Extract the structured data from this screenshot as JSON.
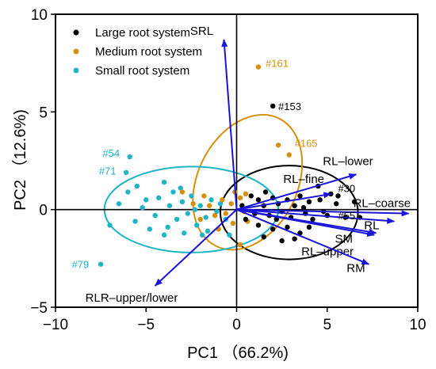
{
  "chart_data": {
    "type": "scatter",
    "title": "",
    "xlabel": "PC1 （66.2%)",
    "ylabel": "PC2 （12.6%)",
    "xlim": [
      -10,
      10
    ],
    "ylim": [
      -5,
      10
    ],
    "xticks": [
      -10,
      -5,
      0,
      5,
      10
    ],
    "yticks": [
      -5,
      0,
      5,
      10
    ],
    "legend_position": "top-left",
    "colors": {
      "large": "#000000",
      "medium": "#d4900c",
      "small": "#1fb5c6",
      "loading": "#1a14d8",
      "axis": "#000000"
    },
    "series": [
      {
        "key": "large",
        "name": "Large root system",
        "points": [
          [
            0.8,
            0.7
          ],
          [
            1.2,
            0.5
          ],
          [
            1.5,
            0.2
          ],
          [
            2.0,
            0.6
          ],
          [
            2.3,
            0.3
          ],
          [
            2.8,
            0.5
          ],
          [
            3.2,
            0.2
          ],
          [
            3.5,
            0.7
          ],
          [
            4.0,
            0.4
          ],
          [
            4.6,
            0.5
          ],
          [
            5.2,
            0.8
          ],
          [
            5.5,
            0.3
          ],
          [
            6.5,
            0.4
          ],
          [
            1.0,
            -0.2
          ],
          [
            1.8,
            -0.3
          ],
          [
            2.5,
            -0.1
          ],
          [
            3.0,
            -0.4
          ],
          [
            3.8,
            -0.2
          ],
          [
            4.2,
            -0.5
          ],
          [
            4.8,
            -0.1
          ],
          [
            0.5,
            -0.5
          ],
          [
            1.2,
            -0.8
          ],
          [
            2.0,
            -1.0
          ],
          [
            2.8,
            -0.9
          ],
          [
            3.5,
            -1.2
          ],
          [
            4.0,
            -0.9
          ],
          [
            1.5,
            -1.4
          ],
          [
            2.5,
            -1.6
          ],
          [
            3.2,
            -1.5
          ],
          [
            0.3,
            0.2
          ],
          [
            1.6,
            0.9
          ],
          [
            4.5,
            1.2
          ],
          [
            5.0,
            -0.3
          ],
          [
            2.2,
            -0.5
          ],
          [
            3.7,
            0.1
          ],
          [
            6.0,
            -0.4
          ],
          [
            2.0,
            5.3
          ],
          [
            5.6,
            0.7
          ],
          [
            6.8,
            -0.4
          ]
        ]
      },
      {
        "key": "medium",
        "name": "Medium root system",
        "points": [
          [
            1.2,
            7.3
          ],
          [
            2.9,
            2.8
          ],
          [
            2.3,
            3.3
          ],
          [
            -3.0,
            0.9
          ],
          [
            -2.4,
            0.3
          ],
          [
            -1.8,
            0.7
          ],
          [
            -1.5,
            0.2
          ],
          [
            -1.2,
            -0.3
          ],
          [
            -0.8,
            0.5
          ],
          [
            -0.6,
            -0.2
          ],
          [
            -0.3,
            0.3
          ],
          [
            0.2,
            0.6
          ],
          [
            0.4,
            -0.1
          ],
          [
            0.6,
            -0.6
          ],
          [
            -0.2,
            -0.7
          ],
          [
            -2.0,
            -0.5
          ],
          [
            -1.0,
            -1.0
          ],
          [
            0.2,
            -1.8
          ],
          [
            -0.1,
            0.9
          ],
          [
            0.5,
            0.8
          ]
        ]
      },
      {
        "key": "small",
        "name": "Small root system",
        "points": [
          [
            -5.9,
            2.7
          ],
          [
            -6.1,
            1.9
          ],
          [
            -7.5,
            -2.8
          ],
          [
            -5.5,
            1.2
          ],
          [
            -5.0,
            0.5
          ],
          [
            -5.6,
            -0.6
          ],
          [
            -6.0,
            0.9
          ],
          [
            -7.0,
            -0.8
          ],
          [
            -4.0,
            1.4
          ],
          [
            -4.3,
            0.6
          ],
          [
            -4.5,
            -0.3
          ],
          [
            -3.7,
            0.2
          ],
          [
            -3.3,
            -0.5
          ],
          [
            -3.0,
            0.4
          ],
          [
            -2.7,
            -0.2
          ],
          [
            -2.5,
            0.7
          ],
          [
            -2.2,
            -0.8
          ],
          [
            -2.0,
            0.2
          ],
          [
            -1.7,
            -0.4
          ],
          [
            -1.4,
            0.5
          ],
          [
            -1.1,
            -0.1
          ],
          [
            -0.9,
            0.3
          ],
          [
            -0.6,
            -0.5
          ],
          [
            -4.8,
            -1.0
          ],
          [
            -3.8,
            -0.9
          ],
          [
            -3.5,
            0.9
          ],
          [
            -5.2,
            0.1
          ],
          [
            -1.6,
            -1.1
          ],
          [
            -0.4,
            -1.3
          ],
          [
            -2.9,
            -1.2
          ],
          [
            -6.5,
            0.3
          ],
          [
            -3.1,
            1.1
          ],
          [
            -4.0,
            -1.3
          ],
          [
            -2.3,
            0.0
          ],
          [
            -1.9,
            -1.3
          ]
        ]
      }
    ],
    "loadings": [
      {
        "name": "SRL",
        "x": -0.7,
        "y": 8.7
      },
      {
        "name": "RL–fine",
        "x": 5.2,
        "y": 0.8
      },
      {
        "name": "RL–lower",
        "x": 6.6,
        "y": 1.8
      },
      {
        "name": "RL–coarse",
        "x": 9.5,
        "y": -0.2
      },
      {
        "name": "RL",
        "x": 8.7,
        "y": -0.6
      },
      {
        "name": "SM",
        "x": 7.7,
        "y": -1.2
      },
      {
        "name": "RL–upper",
        "x": 7.6,
        "y": -1.3
      },
      {
        "name": "RM",
        "x": 7.3,
        "y": -2.8
      },
      {
        "name": "RLR–upper/lower",
        "x": -4.5,
        "y": -3.9
      }
    ],
    "ellipses": [
      {
        "key": "large",
        "cx": 2.9,
        "cy": -0.15,
        "rx": 3.8,
        "ry": 2.4,
        "angle": 0
      },
      {
        "key": "medium",
        "cx": 0.6,
        "cy": 1.4,
        "rx": 3.7,
        "ry": 2.7,
        "angle": 62
      },
      {
        "key": "small",
        "cx": -2.5,
        "cy": 0.0,
        "rx": 4.8,
        "ry": 2.2,
        "angle": 0
      }
    ],
    "annotations": [
      {
        "text": "#161",
        "key": "medium",
        "x": 1.6,
        "y": 7.3
      },
      {
        "text": "#153",
        "key": "large",
        "x": 2.3,
        "y": 5.1
      },
      {
        "text": "#165",
        "key": "medium",
        "x": 3.2,
        "y": 3.2
      },
      {
        "text": "#54",
        "key": "small",
        "x": -7.4,
        "y": 2.7
      },
      {
        "text": "#71",
        "key": "small",
        "x": -7.6,
        "y": 1.8
      },
      {
        "text": "#79",
        "key": "small",
        "x": -9.1,
        "y": -3.0
      },
      {
        "text": "#30",
        "key": "large",
        "x": 5.6,
        "y": 0.9
      },
      {
        "text": "#55",
        "key": "large",
        "x": 5.6,
        "y": -0.5
      }
    ]
  }
}
